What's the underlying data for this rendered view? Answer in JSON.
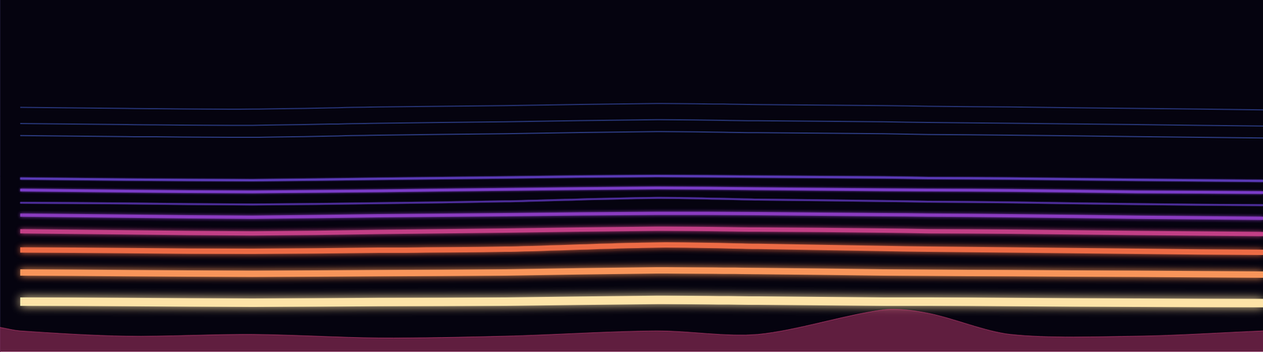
{
  "chart_data": {
    "type": "line",
    "x": [
      0,
      1.6,
      10,
      20,
      30,
      40,
      52,
      60,
      70,
      73.5,
      80,
      90,
      100
    ],
    "xlim": [
      0,
      100
    ],
    "ylim": [
      0,
      100
    ],
    "grid": false,
    "tick_labels": false,
    "series": [
      {
        "type": "area",
        "color": "#d0407a",
        "values": [
          7,
          6,
          4.5,
          5,
          4,
          4.5,
          6,
          5,
          12,
          11,
          5,
          4.5,
          6
        ]
      },
      {
        "color": "#fde3a7",
        "values": [
          null,
          14.3,
          14.2,
          14.0,
          14.2,
          14.3,
          14.8,
          14.6,
          14.3,
          14.3,
          14.2,
          14.0,
          13.9
        ]
      },
      {
        "color": "#f8955a",
        "values": [
          null,
          22.6,
          22.4,
          22.2,
          22.4,
          22.6,
          23.2,
          23.0,
          22.6,
          22.5,
          22.4,
          22.2,
          22.0
        ]
      },
      {
        "color": "#ec6b45",
        "values": [
          null,
          29.0,
          28.8,
          28.6,
          28.9,
          29.2,
          30.4,
          30.0,
          29.4,
          29.2,
          29.0,
          28.6,
          28.3
        ]
      },
      {
        "color": "#c23f86",
        "values": [
          null,
          34.3,
          34.0,
          33.7,
          34.1,
          34.5,
          35.0,
          34.8,
          34.5,
          34.3,
          34.2,
          33.8,
          33.5
        ]
      },
      {
        "color": "#8a3bc0",
        "values": [
          null,
          38.9,
          38.6,
          38.3,
          38.7,
          39.0,
          39.4,
          39.3,
          39.0,
          38.9,
          38.7,
          38.3,
          38.0
        ]
      },
      {
        "color": "#4e2e9c",
        "values": [
          null,
          42.4,
          42.2,
          41.9,
          42.3,
          42.8,
          43.8,
          43.3,
          42.9,
          42.7,
          42.5,
          42.0,
          41.7
        ]
      },
      {
        "color": "#7a3cc8",
        "values": [
          null,
          46.0,
          45.7,
          45.5,
          45.8,
          46.2,
          46.6,
          46.4,
          46.1,
          46.0,
          45.9,
          45.5,
          45.3
        ]
      },
      {
        "color": "#5a3ab6",
        "values": [
          null,
          49.3,
          49.0,
          48.8,
          49.2,
          49.6,
          50.0,
          49.8,
          49.6,
          49.4,
          49.3,
          48.9,
          48.6
        ]
      },
      {
        "color": "#2e3e86",
        "values": [
          null,
          61.5,
          61.2,
          61.0,
          61.6,
          62.0,
          62.6,
          62.3,
          62.0,
          61.8,
          61.6,
          61.2,
          60.8
        ]
      },
      {
        "color": "#2a3a7e",
        "values": [
          null,
          64.9,
          64.6,
          64.4,
          65.0,
          65.4,
          66.0,
          65.7,
          65.4,
          65.2,
          65.0,
          64.6,
          64.2
        ]
      },
      {
        "color": "#28367a",
        "values": [
          null,
          69.5,
          69.2,
          69.0,
          69.6,
          70.0,
          70.6,
          70.3,
          70.0,
          69.8,
          69.6,
          69.2,
          68.8
        ]
      }
    ]
  }
}
